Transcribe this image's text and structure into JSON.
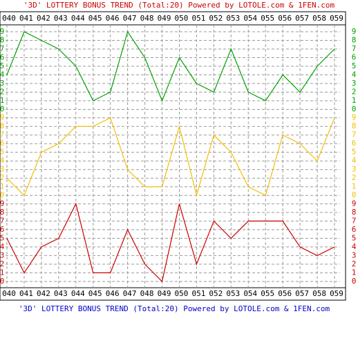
{
  "chart_data": {
    "type": "line",
    "title": "'3D' LOTTERY BONUS TREND (Total:20)  Powered by LOTOLE.com & 1FEN.com",
    "categories": [
      "040",
      "041",
      "042",
      "043",
      "044",
      "045",
      "046",
      "047",
      "048",
      "049",
      "050",
      "051",
      "052",
      "053",
      "054",
      "055",
      "056",
      "057",
      "058",
      "059"
    ],
    "series": [
      {
        "color": "#00a000",
        "values": [
          4,
          9,
          8,
          7,
          5,
          1,
          2,
          9,
          6,
          1,
          6,
          3,
          2,
          7,
          2,
          1,
          4,
          2,
          5,
          7
        ]
      },
      {
        "color": "#f0c000",
        "values": [
          2,
          0,
          5,
          6,
          8,
          8,
          9,
          3,
          1,
          1,
          8,
          0,
          7,
          5,
          1,
          0,
          7,
          6,
          4,
          9
        ]
      },
      {
        "color": "#cc0000",
        "values": [
          5,
          1,
          4,
          5,
          9,
          1,
          1,
          6,
          2,
          0,
          9,
          2,
          7,
          5,
          7,
          7,
          7,
          4,
          3,
          4
        ]
      }
    ],
    "ylim": [
      0,
      9
    ],
    "yticks": [
      0,
      1,
      2,
      3,
      4,
      5,
      6,
      7,
      8,
      9
    ],
    "grid": true
  }
}
